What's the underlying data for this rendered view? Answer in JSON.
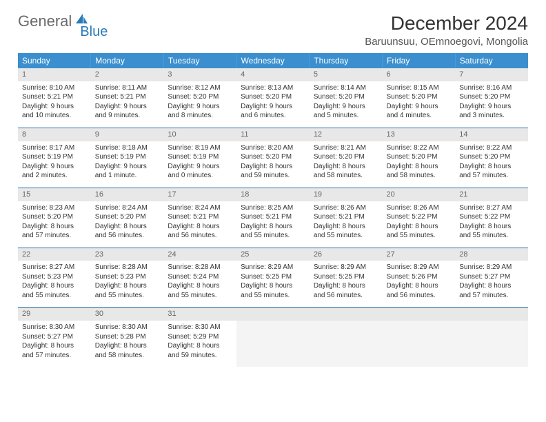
{
  "logo": {
    "text1": "General",
    "text2": "Blue"
  },
  "title": "December 2024",
  "location": "Baruunsuu, OEmnoegovi, Mongolia",
  "colors": {
    "header_bg": "#3b8fce",
    "border": "#2a6fa8",
    "daynum_bg": "#e8e8e8",
    "empty_bg": "#f4f4f4"
  },
  "weekdays": [
    "Sunday",
    "Monday",
    "Tuesday",
    "Wednesday",
    "Thursday",
    "Friday",
    "Saturday"
  ],
  "days": [
    {
      "n": "1",
      "sr": "Sunrise: 8:10 AM",
      "ss": "Sunset: 5:21 PM",
      "d1": "Daylight: 9 hours",
      "d2": "and 10 minutes."
    },
    {
      "n": "2",
      "sr": "Sunrise: 8:11 AM",
      "ss": "Sunset: 5:21 PM",
      "d1": "Daylight: 9 hours",
      "d2": "and 9 minutes."
    },
    {
      "n": "3",
      "sr": "Sunrise: 8:12 AM",
      "ss": "Sunset: 5:20 PM",
      "d1": "Daylight: 9 hours",
      "d2": "and 8 minutes."
    },
    {
      "n": "4",
      "sr": "Sunrise: 8:13 AM",
      "ss": "Sunset: 5:20 PM",
      "d1": "Daylight: 9 hours",
      "d2": "and 6 minutes."
    },
    {
      "n": "5",
      "sr": "Sunrise: 8:14 AM",
      "ss": "Sunset: 5:20 PM",
      "d1": "Daylight: 9 hours",
      "d2": "and 5 minutes."
    },
    {
      "n": "6",
      "sr": "Sunrise: 8:15 AM",
      "ss": "Sunset: 5:20 PM",
      "d1": "Daylight: 9 hours",
      "d2": "and 4 minutes."
    },
    {
      "n": "7",
      "sr": "Sunrise: 8:16 AM",
      "ss": "Sunset: 5:20 PM",
      "d1": "Daylight: 9 hours",
      "d2": "and 3 minutes."
    },
    {
      "n": "8",
      "sr": "Sunrise: 8:17 AM",
      "ss": "Sunset: 5:19 PM",
      "d1": "Daylight: 9 hours",
      "d2": "and 2 minutes."
    },
    {
      "n": "9",
      "sr": "Sunrise: 8:18 AM",
      "ss": "Sunset: 5:19 PM",
      "d1": "Daylight: 9 hours",
      "d2": "and 1 minute."
    },
    {
      "n": "10",
      "sr": "Sunrise: 8:19 AM",
      "ss": "Sunset: 5:19 PM",
      "d1": "Daylight: 9 hours",
      "d2": "and 0 minutes."
    },
    {
      "n": "11",
      "sr": "Sunrise: 8:20 AM",
      "ss": "Sunset: 5:20 PM",
      "d1": "Daylight: 8 hours",
      "d2": "and 59 minutes."
    },
    {
      "n": "12",
      "sr": "Sunrise: 8:21 AM",
      "ss": "Sunset: 5:20 PM",
      "d1": "Daylight: 8 hours",
      "d2": "and 58 minutes."
    },
    {
      "n": "13",
      "sr": "Sunrise: 8:22 AM",
      "ss": "Sunset: 5:20 PM",
      "d1": "Daylight: 8 hours",
      "d2": "and 58 minutes."
    },
    {
      "n": "14",
      "sr": "Sunrise: 8:22 AM",
      "ss": "Sunset: 5:20 PM",
      "d1": "Daylight: 8 hours",
      "d2": "and 57 minutes."
    },
    {
      "n": "15",
      "sr": "Sunrise: 8:23 AM",
      "ss": "Sunset: 5:20 PM",
      "d1": "Daylight: 8 hours",
      "d2": "and 57 minutes."
    },
    {
      "n": "16",
      "sr": "Sunrise: 8:24 AM",
      "ss": "Sunset: 5:20 PM",
      "d1": "Daylight: 8 hours",
      "d2": "and 56 minutes."
    },
    {
      "n": "17",
      "sr": "Sunrise: 8:24 AM",
      "ss": "Sunset: 5:21 PM",
      "d1": "Daylight: 8 hours",
      "d2": "and 56 minutes."
    },
    {
      "n": "18",
      "sr": "Sunrise: 8:25 AM",
      "ss": "Sunset: 5:21 PM",
      "d1": "Daylight: 8 hours",
      "d2": "and 55 minutes."
    },
    {
      "n": "19",
      "sr": "Sunrise: 8:26 AM",
      "ss": "Sunset: 5:21 PM",
      "d1": "Daylight: 8 hours",
      "d2": "and 55 minutes."
    },
    {
      "n": "20",
      "sr": "Sunrise: 8:26 AM",
      "ss": "Sunset: 5:22 PM",
      "d1": "Daylight: 8 hours",
      "d2": "and 55 minutes."
    },
    {
      "n": "21",
      "sr": "Sunrise: 8:27 AM",
      "ss": "Sunset: 5:22 PM",
      "d1": "Daylight: 8 hours",
      "d2": "and 55 minutes."
    },
    {
      "n": "22",
      "sr": "Sunrise: 8:27 AM",
      "ss": "Sunset: 5:23 PM",
      "d1": "Daylight: 8 hours",
      "d2": "and 55 minutes."
    },
    {
      "n": "23",
      "sr": "Sunrise: 8:28 AM",
      "ss": "Sunset: 5:23 PM",
      "d1": "Daylight: 8 hours",
      "d2": "and 55 minutes."
    },
    {
      "n": "24",
      "sr": "Sunrise: 8:28 AM",
      "ss": "Sunset: 5:24 PM",
      "d1": "Daylight: 8 hours",
      "d2": "and 55 minutes."
    },
    {
      "n": "25",
      "sr": "Sunrise: 8:29 AM",
      "ss": "Sunset: 5:25 PM",
      "d1": "Daylight: 8 hours",
      "d2": "and 55 minutes."
    },
    {
      "n": "26",
      "sr": "Sunrise: 8:29 AM",
      "ss": "Sunset: 5:25 PM",
      "d1": "Daylight: 8 hours",
      "d2": "and 56 minutes."
    },
    {
      "n": "27",
      "sr": "Sunrise: 8:29 AM",
      "ss": "Sunset: 5:26 PM",
      "d1": "Daylight: 8 hours",
      "d2": "and 56 minutes."
    },
    {
      "n": "28",
      "sr": "Sunrise: 8:29 AM",
      "ss": "Sunset: 5:27 PM",
      "d1": "Daylight: 8 hours",
      "d2": "and 57 minutes."
    },
    {
      "n": "29",
      "sr": "Sunrise: 8:30 AM",
      "ss": "Sunset: 5:27 PM",
      "d1": "Daylight: 8 hours",
      "d2": "and 57 minutes."
    },
    {
      "n": "30",
      "sr": "Sunrise: 8:30 AM",
      "ss": "Sunset: 5:28 PM",
      "d1": "Daylight: 8 hours",
      "d2": "and 58 minutes."
    },
    {
      "n": "31",
      "sr": "Sunrise: 8:30 AM",
      "ss": "Sunset: 5:29 PM",
      "d1": "Daylight: 8 hours",
      "d2": "and 59 minutes."
    }
  ]
}
